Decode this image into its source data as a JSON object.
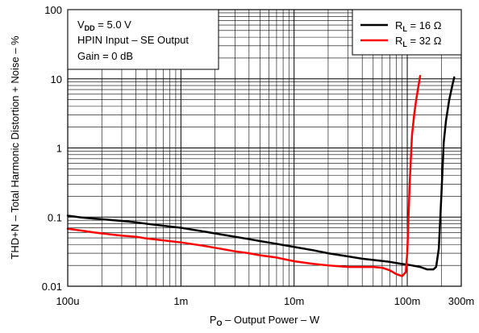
{
  "chart_data": {
    "type": "line",
    "x_scale": "log",
    "y_scale": "log",
    "xlim": [
      0.0001,
      0.3
    ],
    "ylim": [
      0.01,
      100
    ],
    "grid": true,
    "x_ticks": [
      {
        "value": 0.0001,
        "label": "100u"
      },
      {
        "value": 0.001,
        "label": "1m"
      },
      {
        "value": 0.01,
        "label": "10m"
      },
      {
        "value": 0.1,
        "label": "100m"
      },
      {
        "value": 0.3,
        "label": "300m"
      }
    ],
    "y_ticks": [
      {
        "value": 0.01,
        "label": "0.01"
      },
      {
        "value": 0.1,
        "label": "0.1"
      },
      {
        "value": 1,
        "label": "1"
      },
      {
        "value": 10,
        "label": "10"
      },
      {
        "value": 100,
        "label": "100"
      }
    ],
    "xlabel": {
      "main": "P",
      "sub": "O",
      "rest": " – Output Power – W"
    },
    "ylabel": "THD+N – Total Harmonic Distortion + Noise – %",
    "annotation": {
      "line1_main": "V",
      "line1_sub": "DD",
      "line1_rest": " = 5.0 V",
      "line2": "HPIN Input – SE Output",
      "line3": "Gain = 0 dB"
    },
    "legend_position": "top-right",
    "series": [
      {
        "name_main": "R",
        "name_sub": "L",
        "name_rest": " = 16 Ω",
        "color": "#000000",
        "points": [
          [
            0.0001,
            0.105
          ],
          [
            0.00013,
            0.099
          ],
          [
            0.00017,
            0.095
          ],
          [
            0.00022,
            0.092
          ],
          [
            0.0003,
            0.088
          ],
          [
            0.0004,
            0.084
          ],
          [
            0.0005,
            0.08
          ],
          [
            0.0007,
            0.075
          ],
          [
            0.001,
            0.07
          ],
          [
            0.0015,
            0.063
          ],
          [
            0.002,
            0.058
          ],
          [
            0.003,
            0.052
          ],
          [
            0.004,
            0.048
          ],
          [
            0.005,
            0.045
          ],
          [
            0.007,
            0.041
          ],
          [
            0.01,
            0.037
          ],
          [
            0.015,
            0.033
          ],
          [
            0.02,
            0.03
          ],
          [
            0.03,
            0.027
          ],
          [
            0.04,
            0.025
          ],
          [
            0.05,
            0.024
          ],
          [
            0.07,
            0.0225
          ],
          [
            0.09,
            0.021
          ],
          [
            0.11,
            0.02
          ],
          [
            0.13,
            0.019
          ],
          [
            0.15,
            0.0175
          ],
          [
            0.17,
            0.0175
          ],
          [
            0.18,
            0.019
          ],
          [
            0.19,
            0.035
          ],
          [
            0.2,
            0.2
          ],
          [
            0.21,
            1.2
          ],
          [
            0.22,
            2.5
          ],
          [
            0.235,
            5
          ],
          [
            0.25,
            8
          ],
          [
            0.26,
            10.5
          ]
        ]
      },
      {
        "name_main": "R",
        "name_sub": "L",
        "name_rest": " = 32 Ω",
        "color": "#ff0000",
        "points": [
          [
            0.0001,
            0.068
          ],
          [
            0.00013,
            0.064
          ],
          [
            0.00017,
            0.06
          ],
          [
            0.00022,
            0.057
          ],
          [
            0.0003,
            0.054
          ],
          [
            0.0004,
            0.052
          ],
          [
            0.0005,
            0.049
          ],
          [
            0.0007,
            0.046
          ],
          [
            0.001,
            0.043
          ],
          [
            0.0015,
            0.039
          ],
          [
            0.002,
            0.036
          ],
          [
            0.003,
            0.032
          ],
          [
            0.004,
            0.03
          ],
          [
            0.005,
            0.028
          ],
          [
            0.007,
            0.026
          ],
          [
            0.01,
            0.023
          ],
          [
            0.015,
            0.021
          ],
          [
            0.02,
            0.02
          ],
          [
            0.03,
            0.019
          ],
          [
            0.05,
            0.019
          ],
          [
            0.06,
            0.0185
          ],
          [
            0.07,
            0.017
          ],
          [
            0.08,
            0.015
          ],
          [
            0.09,
            0.014
          ],
          [
            0.097,
            0.016
          ],
          [
            0.1,
            0.03
          ],
          [
            0.105,
            0.3
          ],
          [
            0.11,
            1.5
          ],
          [
            0.115,
            3
          ],
          [
            0.12,
            5
          ],
          [
            0.125,
            7.5
          ],
          [
            0.13,
            11
          ]
        ]
      }
    ]
  }
}
